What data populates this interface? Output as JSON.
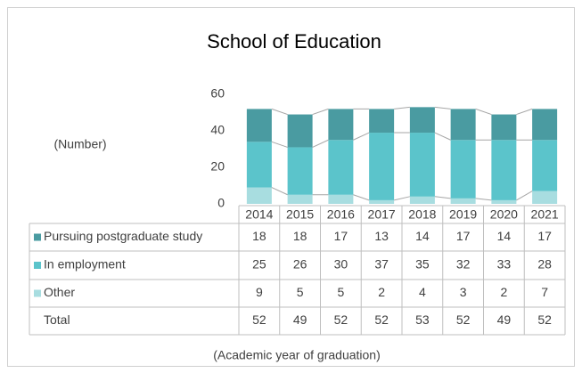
{
  "chart_data": {
    "type": "stacked_bar",
    "title": "School of Education",
    "y_axis_label": "(Number)",
    "x_axis_label": "(Academic year of graduation)",
    "categories": [
      "2014",
      "2015",
      "2016",
      "2017",
      "2018",
      "2019",
      "2020",
      "2021"
    ],
    "series": [
      {
        "name": "Pursuing postgraduate study",
        "color": "#4a9ba1",
        "values": [
          18,
          18,
          17,
          13,
          14,
          17,
          14,
          17
        ]
      },
      {
        "name": "In employment",
        "color": "#5bc4cb",
        "values": [
          25,
          26,
          30,
          37,
          35,
          32,
          33,
          28
        ]
      },
      {
        "name": "Other",
        "color": "#a8dde0",
        "values": [
          9,
          5,
          5,
          2,
          4,
          3,
          2,
          7
        ]
      }
    ],
    "total_label": "Total",
    "totals": [
      52,
      49,
      52,
      52,
      53,
      52,
      49,
      52
    ],
    "ylim": [
      0,
      60
    ],
    "yticks": [
      0,
      20,
      40,
      60
    ]
  }
}
